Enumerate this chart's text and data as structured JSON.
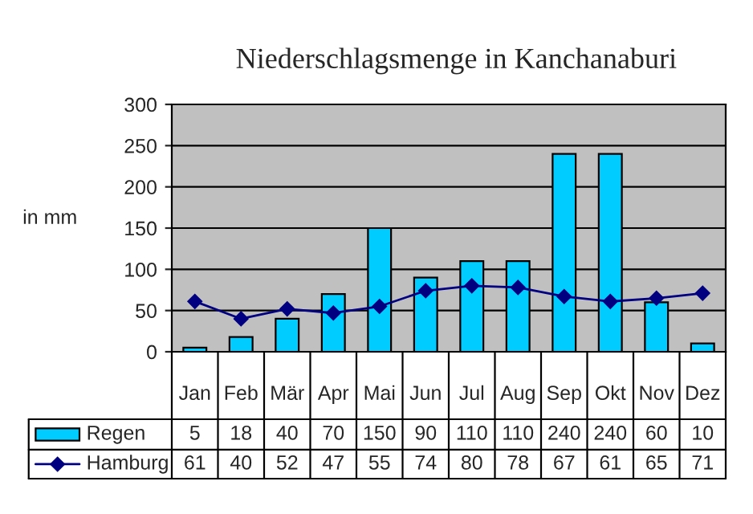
{
  "chart_data": {
    "type": "bar",
    "title": "Niederschlagsmenge in Kanchanaburi",
    "ylabel": "in mm",
    "categories": [
      "Jan",
      "Feb",
      "Mär",
      "Apr",
      "Mai",
      "Jun",
      "Jul",
      "Aug",
      "Sep",
      "Okt",
      "Nov",
      "Dez"
    ],
    "series": [
      {
        "name": "Regen",
        "color": "#00ccff",
        "values": [
          5,
          18,
          40,
          70,
          150,
          90,
          110,
          110,
          240,
          240,
          60,
          10
        ]
      },
      {
        "name": "Hamburg",
        "type": "line",
        "color": "#000080",
        "values": [
          61,
          40,
          52,
          47,
          55,
          74,
          80,
          78,
          67,
          61,
          65,
          71
        ]
      }
    ],
    "ylim": [
      0,
      300
    ],
    "yticks": [
      0,
      50,
      100,
      150,
      200,
      250,
      300
    ],
    "grid": "y",
    "legend": "bottom left",
    "marker": "diamond",
    "data_labels": true
  }
}
